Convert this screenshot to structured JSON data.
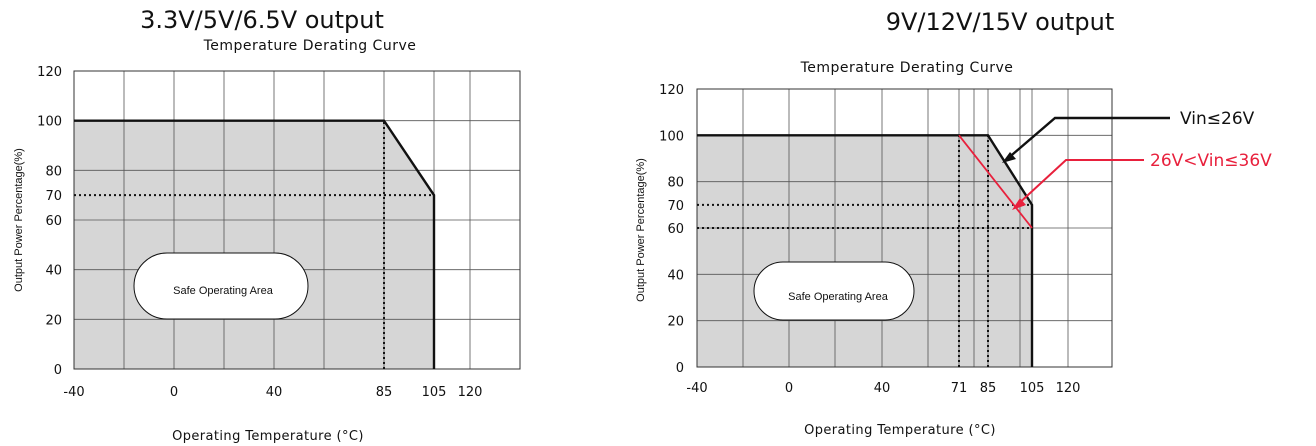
{
  "chart_data": [
    {
      "type": "line",
      "heading": "3.3V/5V/6.5V output",
      "title": "Temperature Derating Curve",
      "xlabel": "Operating Temperature (°C)",
      "ylabel": "Output Power Percentage(%)",
      "x_ticks": [
        "-40",
        "0",
        "40",
        "85",
        "105",
        "120"
      ],
      "y_ticks": [
        "0",
        "20",
        "40",
        "60",
        "70",
        "80",
        "100",
        "120"
      ],
      "xlim": [
        -40,
        120
      ],
      "ylim": [
        0,
        120
      ],
      "grid": true,
      "safe_area_label": "Safe Operating Area",
      "series": [
        {
          "color": "#111111",
          "points": [
            [
              -40,
              100
            ],
            [
              85,
              100
            ],
            [
              105,
              70
            ],
            [
              105,
              0
            ]
          ]
        }
      ],
      "reference_lines": [
        {
          "x": 85,
          "y_from": 0,
          "y_to": 100
        },
        {
          "y": 70,
          "x_from": -40,
          "x_to": 105
        }
      ],
      "annotations": []
    },
    {
      "type": "line",
      "heading": "9V/12V/15V output",
      "title": "Temperature Derating Curve",
      "xlabel": "Operating Temperature (°C)",
      "ylabel": "Output Power Percentage(%)",
      "x_ticks": [
        "-40",
        "0",
        "40",
        "71",
        "85",
        "105",
        "120"
      ],
      "y_ticks": [
        "0",
        "20",
        "40",
        "60",
        "70",
        "80",
        "100",
        "120"
      ],
      "xlim": [
        -40,
        120
      ],
      "ylim": [
        0,
        120
      ],
      "grid": true,
      "safe_area_label": "Safe Operating Area",
      "series": [
        {
          "name": "Vin≤26V",
          "color": "#111111",
          "points": [
            [
              -40,
              100
            ],
            [
              85,
              100
            ],
            [
              105,
              70
            ],
            [
              105,
              0
            ]
          ]
        },
        {
          "name": "26V<Vin≤36V",
          "color": "#e8203c",
          "points": [
            [
              71,
              100
            ],
            [
              105,
              60
            ]
          ]
        }
      ],
      "reference_lines": [
        {
          "x": 71,
          "y_from": 0,
          "y_to": 100
        },
        {
          "x": 85,
          "y_from": 0,
          "y_to": 100
        },
        {
          "y": 70,
          "x_from": -40,
          "x_to": 105
        },
        {
          "y": 60,
          "x_from": -40,
          "x_to": 105
        }
      ],
      "annotations": [
        {
          "text": "Vin≤26V",
          "color": "#111111"
        },
        {
          "text": "26V<Vin≤36V",
          "color": "#e8203c"
        }
      ]
    }
  ]
}
